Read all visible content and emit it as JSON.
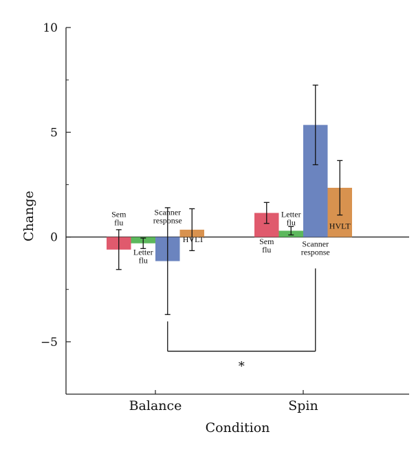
{
  "chart_data": {
    "type": "bar",
    "xlabel": "Condition",
    "ylabel": "Change",
    "ylim": [
      -7.5,
      10
    ],
    "yticks": [
      -5,
      0,
      5,
      10
    ],
    "yticks_text": [
      "−5",
      "0",
      "5",
      "10"
    ],
    "categories": [
      "Balance",
      "Spin"
    ],
    "series": [
      {
        "key": "semflu",
        "label_lines": [
          "Sem",
          "flu"
        ],
        "color": "#e05a6d",
        "values": [
          -0.6,
          1.15
        ],
        "error": [
          0.95,
          0.5
        ]
      },
      {
        "key": "letterflu",
        "label_lines": [
          "Letter",
          "flu"
        ],
        "color": "#5cb85c",
        "values": [
          -0.3,
          0.3
        ],
        "error": [
          0.25,
          0.2
        ]
      },
      {
        "key": "scanner",
        "label_lines": [
          "Scanner",
          "response"
        ],
        "color": "#6b84bf",
        "values": [
          -1.15,
          5.35
        ],
        "error": [
          2.55,
          1.9
        ]
      },
      {
        "key": "hvlt",
        "label_lines": [
          "HVLT"
        ],
        "color": "#d8924f",
        "values": [
          0.35,
          2.35
        ],
        "error": [
          1.0,
          1.3
        ]
      }
    ],
    "significance": {
      "label": "*",
      "between": [
        "Balance:scanner",
        "Spin:scanner"
      ],
      "y": -5.45
    },
    "grid": false,
    "legend": "none"
  }
}
